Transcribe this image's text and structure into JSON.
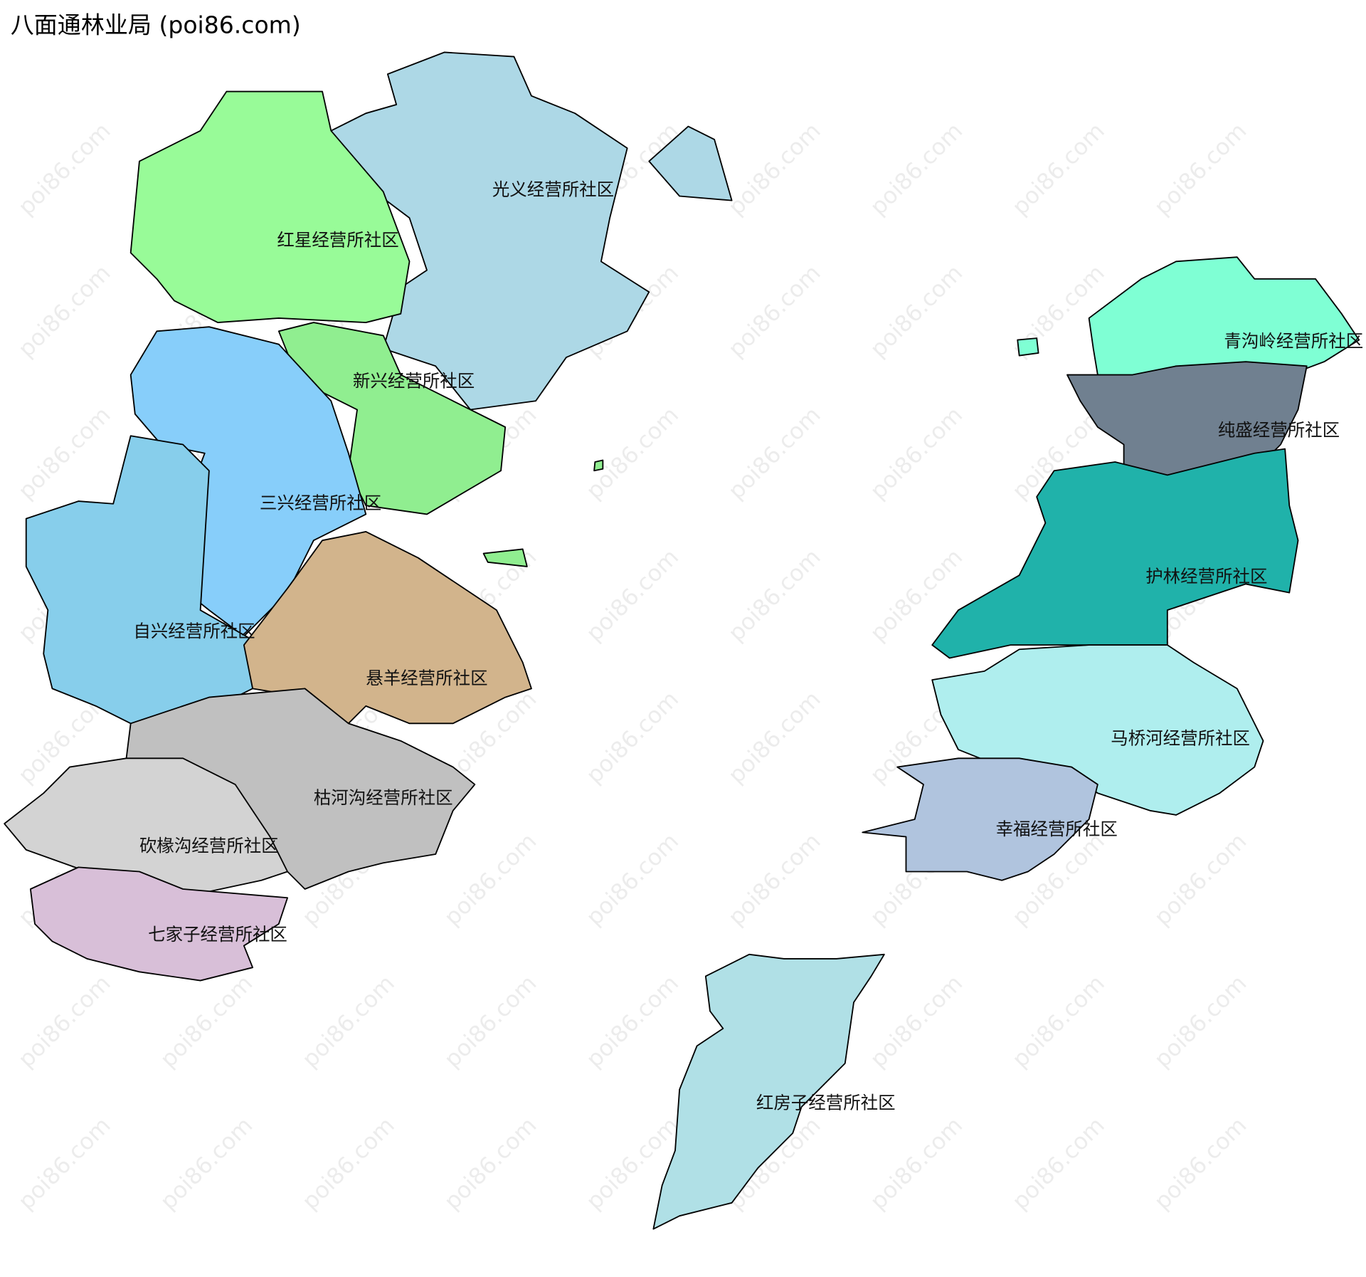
{
  "title": "八面通林业局 (poi86.com)",
  "watermark": "poi86.com",
  "regions": [
    "光义经营所社区",
    "红星经营所社区",
    "新兴经营所社区",
    "三兴经营所社区",
    "自兴经营所社区",
    "悬羊经营所社区",
    "枯河沟经营所社区",
    "砍椽沟经营所社区",
    "七家子经营所社区",
    "青沟岭经营所社区",
    "纯盛经营所社区",
    "护林经营所社区",
    "马桥河经营所社区",
    "幸福经营所社区",
    "红房子经营所社区"
  ]
}
